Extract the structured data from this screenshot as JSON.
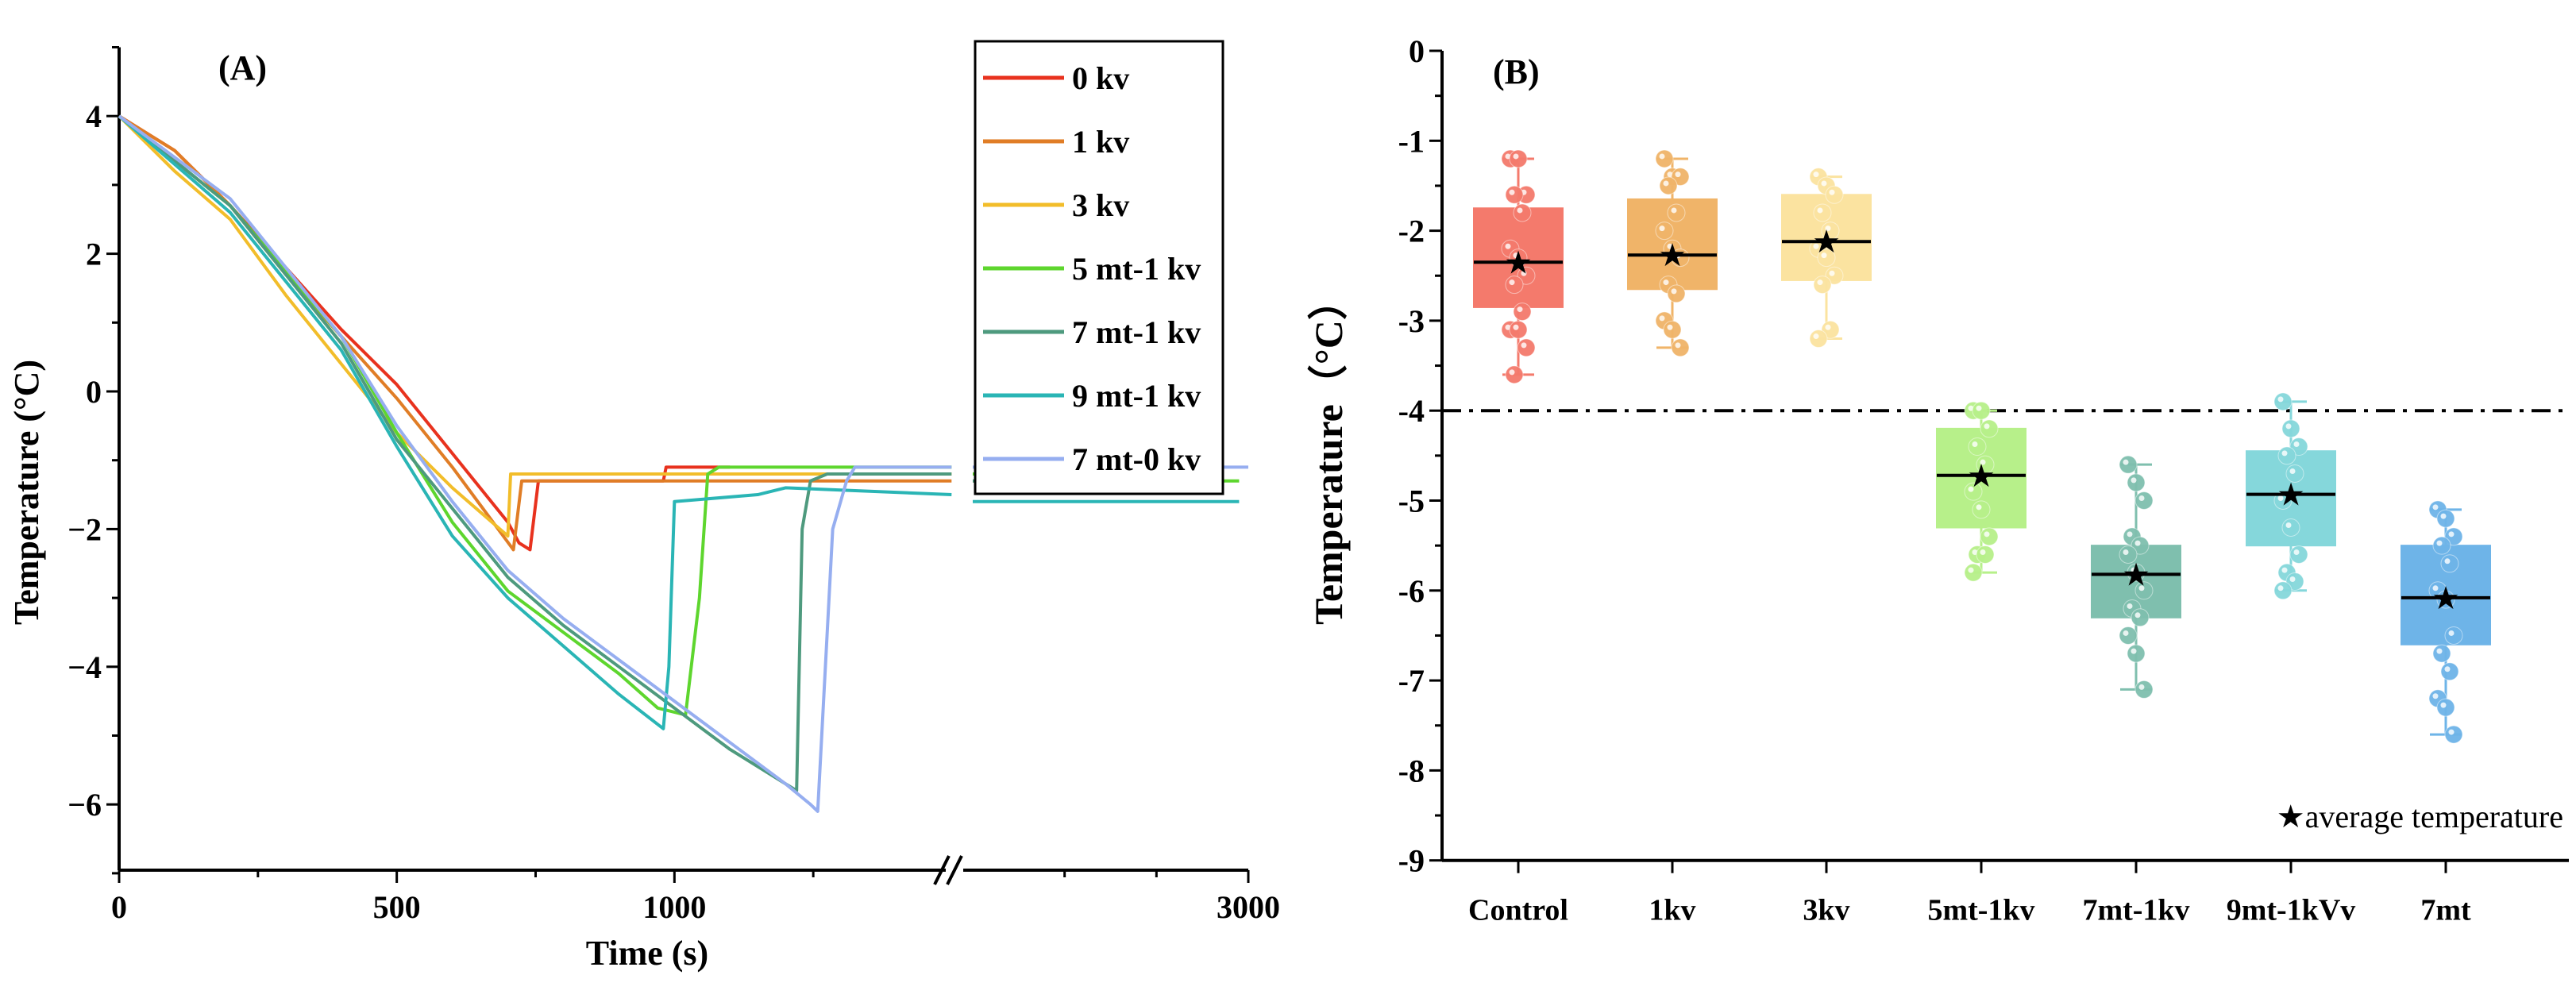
{
  "chart_data": [
    {
      "type": "line",
      "panel_label": "(A)",
      "xlabel": "Time (s)",
      "ylabel": "Temperature (°C)",
      "xlim": [
        0,
        3000
      ],
      "x_break": [
        1500,
        1500
      ],
      "ylim": [
        -7,
        5
      ],
      "x_ticks": [
        0,
        500,
        1000,
        3000
      ],
      "x_tick_labels": [
        "0",
        "500",
        "1000",
        "3000"
      ],
      "y_ticks": [
        -6,
        -4,
        -2,
        0,
        2,
        4
      ],
      "y_tick_labels": [
        "−6",
        "−4",
        "−2",
        "0",
        "2",
        "4"
      ],
      "legend_position": "top-right",
      "series": [
        {
          "name": "0 kv",
          "color": "#e8321e",
          "points": [
            [
              0,
              4
            ],
            [
              100,
              3.5
            ],
            [
              200,
              2.7
            ],
            [
              300,
              1.8
            ],
            [
              400,
              0.9
            ],
            [
              500,
              0.1
            ],
            [
              600,
              -0.9
            ],
            [
              700,
              -1.9
            ],
            [
              720,
              -2.2
            ],
            [
              740,
              -2.3
            ],
            [
              755,
              -1.3
            ],
            [
              980,
              -1.3
            ],
            [
              985,
              -1.1
            ],
            [
              1100,
              -1.1
            ]
          ]
        },
        {
          "name": "1 kv",
          "color": "#e07d26",
          "points": [
            [
              0,
              4
            ],
            [
              100,
              3.5
            ],
            [
              200,
              2.7
            ],
            [
              300,
              1.7
            ],
            [
              400,
              0.8
            ],
            [
              500,
              -0.1
            ],
            [
              600,
              -1.1
            ],
            [
              710,
              -2.3
            ],
            [
              725,
              -1.3
            ],
            [
              1500,
              -1.3
            ],
            [
              1500,
              -1.3
            ],
            [
              2700,
              -1.3
            ]
          ]
        },
        {
          "name": "3 kv",
          "color": "#f2bd2a",
          "points": [
            [
              0,
              4
            ],
            [
              100,
              3.2
            ],
            [
              200,
              2.5
            ],
            [
              300,
              1.4
            ],
            [
              400,
              0.4
            ],
            [
              500,
              -0.6
            ],
            [
              600,
              -1.4
            ],
            [
              700,
              -2.1
            ],
            [
              705,
              -1.2
            ],
            [
              1500,
              -1.2
            ],
            [
              1500,
              -1.2
            ],
            [
              2800,
              -1.2
            ]
          ]
        },
        {
          "name": "5 mt-1 kv",
          "color": "#5ed62e",
          "points": [
            [
              0,
              4
            ],
            [
              200,
              2.7
            ],
            [
              400,
              0.8
            ],
            [
              500,
              -0.6
            ],
            [
              600,
              -1.9
            ],
            [
              700,
              -2.9
            ],
            [
              800,
              -3.5
            ],
            [
              900,
              -4.1
            ],
            [
              970,
              -4.6
            ],
            [
              1020,
              -4.7
            ],
            [
              1045,
              -3.0
            ],
            [
              1060,
              -1.2
            ],
            [
              1080,
              -1.1
            ],
            [
              1500,
              -1.1
            ],
            [
              1500,
              -1.2
            ],
            [
              2650,
              -1.2
            ],
            [
              2700,
              -1.3
            ],
            [
              2950,
              -1.3
            ]
          ]
        },
        {
          "name": "7 mt-1 kv",
          "color": "#4e9a7e",
          "points": [
            [
              0,
              4
            ],
            [
              200,
              2.7
            ],
            [
              400,
              0.7
            ],
            [
              500,
              -0.7
            ],
            [
              600,
              -1.7
            ],
            [
              700,
              -2.7
            ],
            [
              800,
              -3.4
            ],
            [
              900,
              -4.0
            ],
            [
              1000,
              -4.6
            ],
            [
              1100,
              -5.2
            ],
            [
              1200,
              -5.7
            ],
            [
              1220,
              -5.8
            ],
            [
              1230,
              -2.0
            ],
            [
              1245,
              -1.3
            ],
            [
              1275,
              -1.2
            ],
            [
              1500,
              -1.2
            ],
            [
              1500,
              -1.3
            ],
            [
              2800,
              -1.3
            ]
          ]
        },
        {
          "name": "9 mt-1 kv",
          "color": "#2ab5b5",
          "points": [
            [
              0,
              4
            ],
            [
              200,
              2.6
            ],
            [
              400,
              0.6
            ],
            [
              500,
              -0.8
            ],
            [
              600,
              -2.1
            ],
            [
              700,
              -3.0
            ],
            [
              800,
              -3.7
            ],
            [
              900,
              -4.4
            ],
            [
              980,
              -4.9
            ],
            [
              990,
              -4.0
            ],
            [
              1000,
              -1.6
            ],
            [
              1150,
              -1.5
            ],
            [
              1200,
              -1.4
            ],
            [
              1500,
              -1.5
            ],
            [
              1500,
              -1.6
            ],
            [
              2950,
              -1.6
            ]
          ]
        },
        {
          "name": "7 mt-0 kv",
          "color": "#96aef0",
          "points": [
            [
              0,
              4
            ],
            [
              200,
              2.8
            ],
            [
              400,
              0.8
            ],
            [
              500,
              -0.5
            ],
            [
              600,
              -1.6
            ],
            [
              700,
              -2.6
            ],
            [
              800,
              -3.3
            ],
            [
              900,
              -3.9
            ],
            [
              1000,
              -4.5
            ],
            [
              1100,
              -5.1
            ],
            [
              1200,
              -5.7
            ],
            [
              1245,
              -6.0
            ],
            [
              1258,
              -6.1
            ],
            [
              1285,
              -2.0
            ],
            [
              1310,
              -1.3
            ],
            [
              1325,
              -1.1
            ],
            [
              1500,
              -1.1
            ],
            [
              1500,
              -1.1
            ],
            [
              3000,
              -1.1
            ]
          ]
        }
      ]
    },
    {
      "type": "box",
      "panel_label": "(B)",
      "ylabel": "Temperature（°C）",
      "ylim": [
        -9,
        0
      ],
      "y_ticks": [
        0,
        -1,
        -2,
        -3,
        -4,
        -5,
        -6,
        -7,
        -8,
        -9
      ],
      "y_tick_labels": [
        "0",
        "-1",
        "-2",
        "-3",
        "-4",
        "-5",
        "-6",
        "-7",
        "-8",
        "-9"
      ],
      "reference_line": -4,
      "legend_note": "★average temperature",
      "categories": [
        "Control",
        "1kv",
        "3kv",
        "5mt-1kv",
        "7mt-1kv",
        "9mt-1kVv",
        "7mt"
      ],
      "boxes": [
        {
          "color": "#f47a6c",
          "q1": -2.85,
          "q3": -1.75,
          "median": -2.35,
          "mean": -2.35,
          "min": -3.6,
          "max": -1.2,
          "points": [
            -1.2,
            -1.2,
            -1.6,
            -1.6,
            -1.8,
            -2.2,
            -2.3,
            -2.5,
            -2.6,
            -2.9,
            -3.1,
            -3.1,
            -3.3,
            -3.6
          ]
        },
        {
          "color": "#f0b469",
          "q1": -2.65,
          "q3": -1.65,
          "median": -2.27,
          "mean": -2.27,
          "min": -3.3,
          "max": -1.2,
          "points": [
            -1.2,
            -1.4,
            -1.4,
            -1.5,
            -1.8,
            -2.0,
            -2.2,
            -2.3,
            -2.6,
            -2.7,
            -3.0,
            -3.1,
            -3.3
          ]
        },
        {
          "color": "#fbe3a0",
          "q1": -2.55,
          "q3": -1.6,
          "median": -2.12,
          "mean": -2.12,
          "min": -3.2,
          "max": -1.4,
          "points": [
            -1.4,
            -1.5,
            -1.6,
            -1.8,
            -2.0,
            -2.2,
            -2.3,
            -2.5,
            -2.6,
            -3.1,
            -3.2
          ]
        },
        {
          "color": "#b7f08a",
          "q1": -5.3,
          "q3": -4.2,
          "median": -4.72,
          "mean": -4.72,
          "min": -5.8,
          "max": -4.0,
          "points": [
            -4.0,
            -4.0,
            -4.2,
            -4.4,
            -4.6,
            -4.9,
            -5.1,
            -5.4,
            -5.6,
            -5.6,
            -5.8
          ]
        },
        {
          "color": "#7fbfae",
          "q1": -6.3,
          "q3": -5.5,
          "median": -5.82,
          "mean": -5.82,
          "min": -7.1,
          "max": -4.6,
          "points": [
            -4.6,
            -4.8,
            -5.0,
            -5.4,
            -5.5,
            -5.6,
            -5.8,
            -6.0,
            -6.2,
            -6.3,
            -6.5,
            -6.7,
            -7.1
          ]
        },
        {
          "color": "#85d7db",
          "q1": -5.5,
          "q3": -4.45,
          "median": -4.93,
          "mean": -4.93,
          "min": -6.0,
          "max": -3.9,
          "points": [
            -3.9,
            -4.2,
            -4.4,
            -4.5,
            -4.7,
            -5.0,
            -5.3,
            -5.6,
            -5.8,
            -5.9,
            -6.0
          ]
        },
        {
          "color": "#6eb4e8",
          "q1": -6.6,
          "q3": -5.5,
          "median": -6.08,
          "mean": -6.08,
          "min": -7.6,
          "max": -5.1,
          "points": [
            -5.1,
            -5.2,
            -5.4,
            -5.5,
            -5.7,
            -6.0,
            -6.1,
            -6.5,
            -6.7,
            -6.9,
            -7.2,
            -7.3,
            -7.6
          ]
        }
      ]
    }
  ]
}
